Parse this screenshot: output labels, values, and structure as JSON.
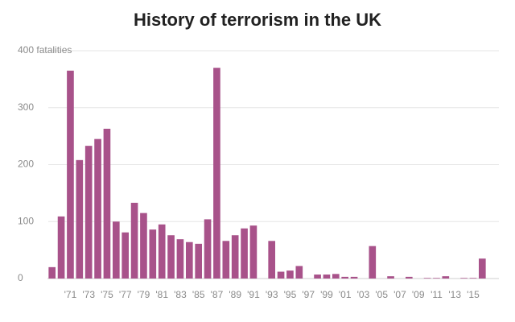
{
  "chart_data": {
    "type": "bar",
    "title": "History of terrorism in the UK",
    "categories": [
      null,
      null,
      "'71",
      null,
      "'73",
      null,
      "'75",
      null,
      "'77",
      null,
      "'79",
      null,
      "'81",
      null,
      "'83",
      null,
      "'85",
      null,
      "'87",
      null,
      "'89",
      null,
      "'91",
      null,
      "'93",
      null,
      "'95",
      null,
      "'97",
      null,
      "'99",
      null,
      "'01",
      null,
      "'03",
      null,
      "'05",
      null,
      "'07",
      null,
      "'09",
      null,
      "'11",
      null,
      "'13",
      null,
      "'15",
      null
    ],
    "values": [
      20,
      109,
      365,
      208,
      233,
      245,
      263,
      100,
      81,
      133,
      115,
      86,
      95,
      76,
      69,
      64,
      61,
      104,
      370,
      66,
      76,
      88,
      93,
      0,
      66,
      12,
      14,
      22,
      0,
      7,
      7,
      8,
      3,
      3,
      0,
      57,
      0,
      4,
      0,
      3,
      0,
      1,
      1,
      4,
      0,
      1,
      1,
      35
    ],
    "color": "#a8528a",
    "ylim": [
      0,
      400
    ],
    "yticks": [
      0,
      100,
      200,
      300,
      {
        "value": 400,
        "label": "400 fatalities"
      }
    ],
    "grid": true
  }
}
